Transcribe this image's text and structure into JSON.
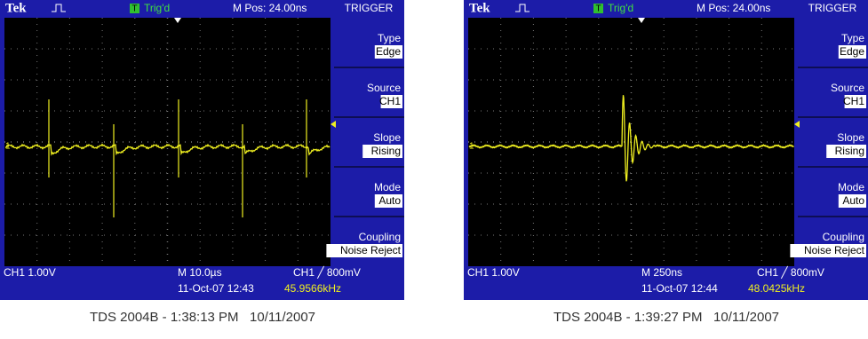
{
  "scopes": [
    {
      "brand": "Tek",
      "trigger_badge": "T",
      "status": "Trig'd",
      "position": "M Pos: 24.00ns",
      "menu_title": "TRIGGER",
      "menu": [
        {
          "label": "Type",
          "value": "Edge"
        },
        {
          "label": "Source",
          "value": "CH1"
        },
        {
          "label": "Slope",
          "value": "Rising"
        },
        {
          "label": "Mode",
          "value": "Auto"
        },
        {
          "label": "Coupling",
          "value": "Noise Reject"
        }
      ],
      "channel_marker": "1",
      "channel": "CH1  1.00V",
      "timebase": "M 10.0µs",
      "trigger_level": "CH1 ╱ 800mV",
      "datetime": "11-Oct-07 12:43",
      "frequency": "45.9566kHz",
      "caption": "TDS 2004B - 1:38:13 PM   10/11/2007"
    },
    {
      "brand": "Tek",
      "trigger_badge": "T",
      "status": "Trig'd",
      "position": "M Pos: 24.00ns",
      "menu_title": "TRIGGER",
      "menu": [
        {
          "label": "Type",
          "value": "Edge"
        },
        {
          "label": "Source",
          "value": "CH1"
        },
        {
          "label": "Slope",
          "value": "Rising"
        },
        {
          "label": "Mode",
          "value": "Auto"
        },
        {
          "label": "Coupling",
          "value": "Noise Reject"
        }
      ],
      "channel_marker": "1",
      "channel": "CH1  1.00V",
      "timebase": "M 250ns",
      "trigger_level": "CH1 ╱ 800mV",
      "datetime": "11-Oct-07 12:44",
      "frequency": "48.0425kHz",
      "caption": "TDS 2004B - 1:39:27 PM   10/11/2007"
    }
  ]
}
